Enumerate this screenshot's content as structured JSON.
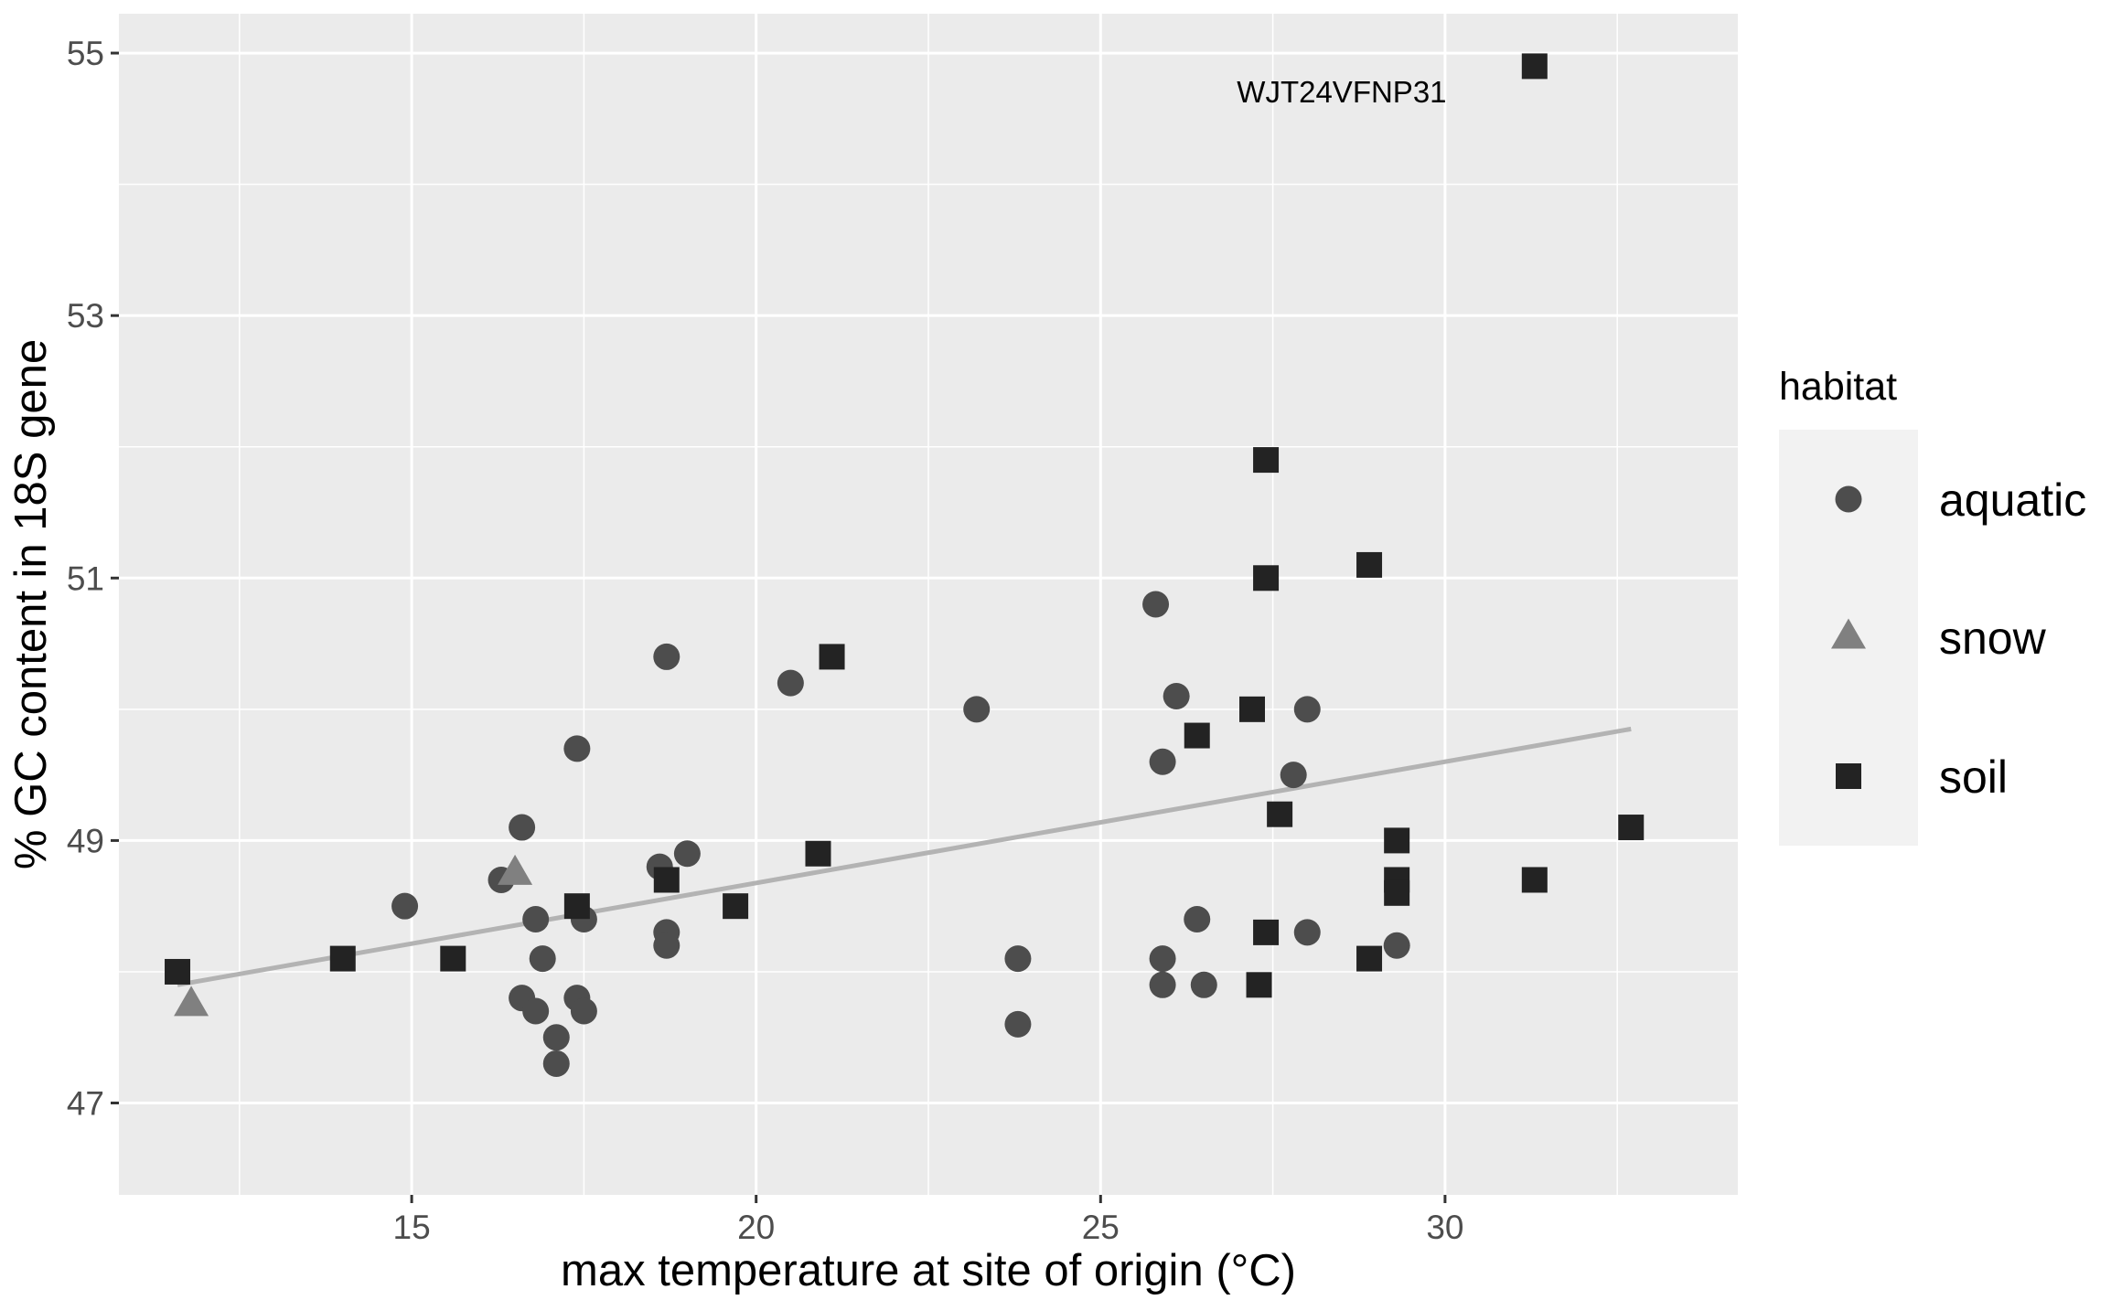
{
  "chart_data": {
    "type": "scatter",
    "xlabel": "max temperature at site of origin (°C)",
    "ylabel": "% GC content in 18S gene",
    "xlim": [
      10.75,
      34.25
    ],
    "ylim": [
      46.3,
      55.3
    ],
    "x_ticks": [
      15,
      20,
      25,
      30
    ],
    "y_ticks": [
      47,
      49,
      51,
      53,
      55
    ],
    "grid": true,
    "legend": {
      "title": "habitat",
      "position": "right",
      "entries": [
        {
          "label": "aquatic",
          "shape": "circle",
          "color": "#4d4d4d"
        },
        {
          "label": "snow",
          "shape": "triangle",
          "color": "#808080"
        },
        {
          "label": "soil",
          "shape": "square",
          "color": "#232323"
        }
      ]
    },
    "series": [
      {
        "name": "aquatic",
        "points": [
          [
            14.9,
            48.5
          ],
          [
            16.3,
            48.7
          ],
          [
            16.6,
            49.1
          ],
          [
            16.8,
            48.4
          ],
          [
            16.9,
            48.1
          ],
          [
            16.6,
            47.8
          ],
          [
            16.8,
            47.7
          ],
          [
            17.1,
            47.5
          ],
          [
            17.1,
            47.3
          ],
          [
            17.4,
            49.7
          ],
          [
            17.5,
            48.4
          ],
          [
            17.4,
            47.8
          ],
          [
            17.5,
            47.7
          ],
          [
            18.6,
            48.8
          ],
          [
            18.7,
            48.3
          ],
          [
            18.7,
            48.2
          ],
          [
            18.7,
            50.4
          ],
          [
            19.0,
            48.9
          ],
          [
            20.5,
            50.2
          ],
          [
            23.2,
            50.0
          ],
          [
            23.8,
            48.1
          ],
          [
            23.8,
            47.6
          ],
          [
            25.8,
            50.8
          ],
          [
            26.1,
            50.1
          ],
          [
            25.9,
            49.6
          ],
          [
            25.9,
            48.1
          ],
          [
            25.9,
            47.9
          ],
          [
            26.4,
            48.4
          ],
          [
            26.5,
            47.9
          ],
          [
            27.8,
            49.5
          ],
          [
            28.0,
            50.0
          ],
          [
            28.0,
            48.3
          ],
          [
            29.3,
            48.2
          ]
        ]
      },
      {
        "name": "snow",
        "points": [
          [
            11.8,
            47.75
          ],
          [
            16.5,
            48.75
          ]
        ]
      },
      {
        "name": "soil",
        "points": [
          [
            11.6,
            48.0
          ],
          [
            14.0,
            48.1
          ],
          [
            15.6,
            48.1
          ],
          [
            17.4,
            48.5
          ],
          [
            18.7,
            48.7
          ],
          [
            19.7,
            48.5
          ],
          [
            20.9,
            48.9
          ],
          [
            21.1,
            50.4
          ],
          [
            26.4,
            49.8
          ],
          [
            27.2,
            50.0
          ],
          [
            27.4,
            51.9
          ],
          [
            27.4,
            51.0
          ],
          [
            27.6,
            49.2
          ],
          [
            27.4,
            48.3
          ],
          [
            27.3,
            47.9
          ],
          [
            28.9,
            51.1
          ],
          [
            28.9,
            48.1
          ],
          [
            29.3,
            49.0
          ],
          [
            29.3,
            48.7
          ],
          [
            29.3,
            48.6
          ],
          [
            31.3,
            48.7
          ],
          [
            32.7,
            49.1
          ],
          [
            31.3,
            54.9
          ]
        ]
      }
    ],
    "trend_line": {
      "color": "#b3b3b3",
      "points": [
        [
          11.6,
          47.9
        ],
        [
          32.7,
          49.85
        ]
      ]
    },
    "annotations": [
      {
        "text": "WJT24VFNP31",
        "x": 28.5,
        "y": 54.7
      }
    ]
  }
}
